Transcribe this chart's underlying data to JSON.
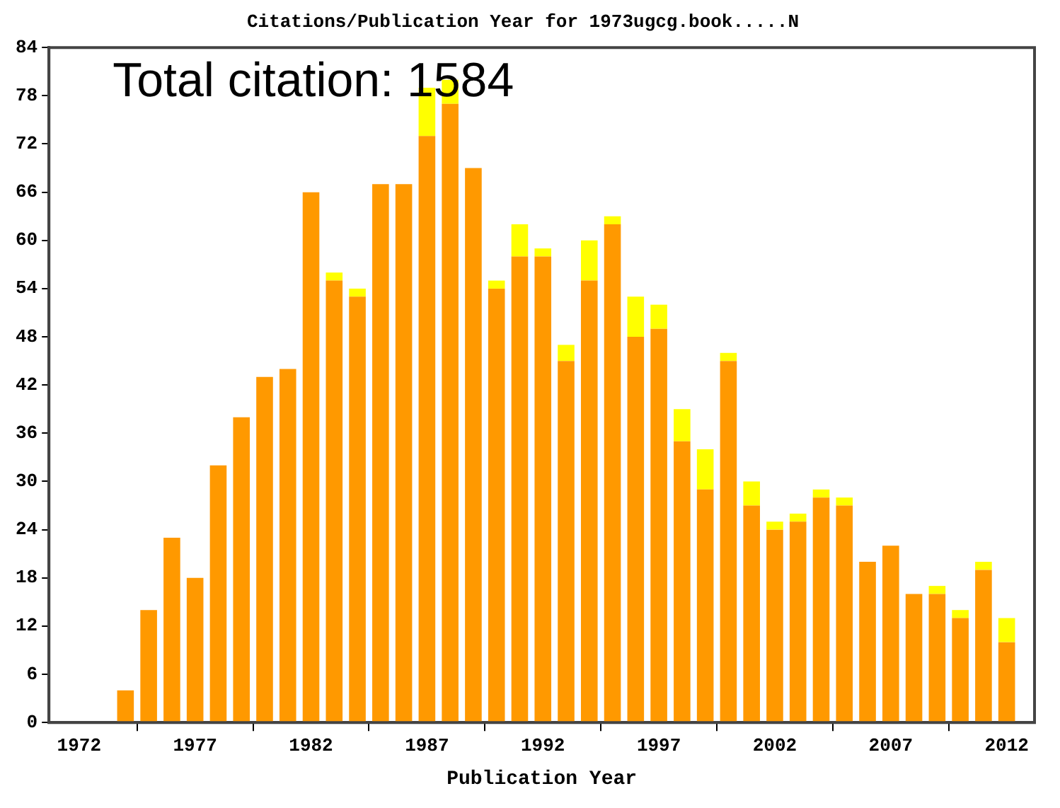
{
  "chart_data": {
    "type": "bar",
    "title": "Citations/Publication Year for 1973ugcg.book.....N",
    "xlabel": "Publication Year",
    "annotations": [
      "Total citation: 1584"
    ],
    "x": [
      1974,
      1975,
      1976,
      1977,
      1978,
      1979,
      1980,
      1981,
      1982,
      1983,
      1984,
      1985,
      1986,
      1987,
      1988,
      1989,
      1990,
      1991,
      1992,
      1993,
      1994,
      1995,
      1996,
      1997,
      1998,
      1999,
      2000,
      2001,
      2002,
      2003,
      2004,
      2005,
      2006,
      2007,
      2008,
      2009,
      2010,
      2011,
      2012
    ],
    "stacked": true,
    "series": [
      {
        "color": "#ff9900",
        "values": [
          4,
          14,
          23,
          18,
          32,
          38,
          43,
          44,
          66,
          55,
          53,
          67,
          67,
          73,
          77,
          69,
          54,
          58,
          58,
          45,
          55,
          62,
          48,
          49,
          35,
          29,
          45,
          27,
          24,
          25,
          28,
          27,
          20,
          22,
          16,
          16,
          13,
          19,
          10
        ]
      },
      {
        "color": "#ffff00",
        "values": [
          0,
          0,
          0,
          0,
          0,
          0,
          0,
          0,
          0,
          1,
          1,
          0,
          0,
          6,
          3,
          0,
          1,
          4,
          1,
          2,
          5,
          1,
          5,
          3,
          4,
          5,
          1,
          3,
          1,
          1,
          1,
          1,
          0,
          0,
          0,
          1,
          1,
          1,
          3
        ]
      }
    ],
    "xlim": [
      1970.7,
      2013.2
    ],
    "xticks": [
      1972,
      1977,
      1982,
      1987,
      1992,
      1997,
      2002,
      2007,
      2012
    ],
    "ylim": [
      0,
      84
    ],
    "yticks": [
      0,
      6,
      12,
      18,
      24,
      30,
      36,
      42,
      48,
      54,
      60,
      66,
      72,
      78,
      84
    ],
    "grid": false,
    "legend": false
  }
}
